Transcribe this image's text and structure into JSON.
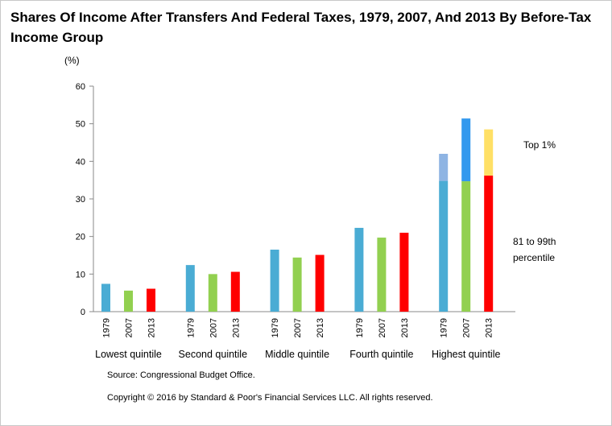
{
  "title": "Shares Of Income After Transfers And Federal Taxes, 1979, 2007, And 2013 By Before-Tax Income Group",
  "source": "Source: Congressional Budget Office.",
  "copyright": "Copyright © 2016 by Standard & Poor's Financial Services LLC. All rights reserved.",
  "chart_data": {
    "type": "bar",
    "stacked": true,
    "unit_label": "(%)",
    "ylim": [
      0,
      60
    ],
    "yticks": [
      0,
      10,
      20,
      30,
      40,
      50,
      60
    ],
    "grid": false,
    "groups": [
      {
        "label": "Lowest quintile",
        "bars": [
          {
            "year": "1979",
            "value": 7.4
          },
          {
            "year": "2007",
            "value": 5.6
          },
          {
            "year": "2013",
            "value": 6.1
          }
        ]
      },
      {
        "label": "Second quintile",
        "bars": [
          {
            "year": "1979",
            "value": 12.4
          },
          {
            "year": "2007",
            "value": 10.0
          },
          {
            "year": "2013",
            "value": 10.6
          }
        ]
      },
      {
        "label": "Middle quintile",
        "bars": [
          {
            "year": "1979",
            "value": 16.5
          },
          {
            "year": "2007",
            "value": 14.4
          },
          {
            "year": "2013",
            "value": 15.1
          }
        ]
      },
      {
        "label": "Fourth quintile",
        "bars": [
          {
            "year": "1979",
            "value": 22.3
          },
          {
            "year": "2007",
            "value": 19.7
          },
          {
            "year": "2013",
            "value": 21.0
          }
        ]
      },
      {
        "label": "Highest quintile",
        "bars": [
          {
            "year": "1979",
            "value": 34.8,
            "top1": 7.2
          },
          {
            "year": "2007",
            "value": 34.7,
            "top1": 16.7
          },
          {
            "year": "2013",
            "value": 36.2,
            "top1": 12.3
          }
        ]
      }
    ],
    "annotations": {
      "top1": "Top 1%",
      "rest_line1": "81 to 99th",
      "rest_line2": "percentile"
    },
    "colors": {
      "1979": "#4aacd4",
      "2007": "#92d050",
      "2013": "#ff0000",
      "top1_1979": "#8eb4e3",
      "top1_2007": "#3399ee",
      "top1_2013": "#ffe066"
    }
  }
}
